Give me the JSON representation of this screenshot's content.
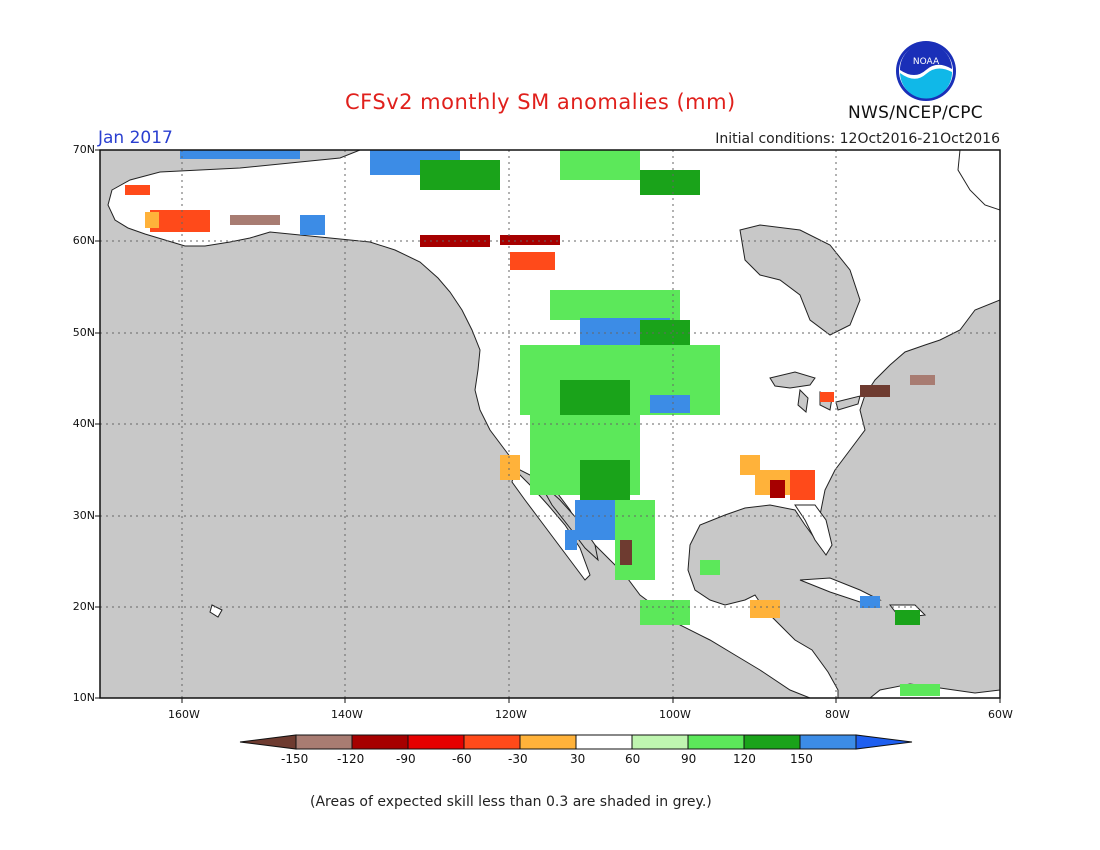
{
  "header": {
    "title": "CFSv2 monthly SM anomalies (mm)",
    "month": "Jan 2017",
    "initial_conditions": "Initial conditions: 12Oct2016-21Oct2016",
    "agency": "NWS/NCEP/CPC",
    "logo_text": "NOAA"
  },
  "axes": {
    "lat_labels": [
      "70N",
      "60N",
      "50N",
      "40N",
      "30N",
      "20N",
      "10N"
    ],
    "lon_labels": [
      "160W",
      "140W",
      "120W",
      "100W",
      "80W",
      "60W"
    ]
  },
  "colorbar": {
    "labels": [
      "-150",
      "-120",
      "-90",
      "-60",
      "-30",
      "30",
      "60",
      "90",
      "120",
      "150"
    ],
    "colors": [
      "#6e3b30",
      "#a87c72",
      "#a60000",
      "#e60000",
      "#ff4a1a",
      "#ffb23a",
      "#ffffff",
      "#bff5b0",
      "#5ce85a",
      "#1aa31a",
      "#3c8ce6",
      "#1e5ff0"
    ]
  },
  "legend_colors": {
    "land_grey": "#c8c8c8",
    "ocean": "#ffffff"
  },
  "footnote": "(Areas of expected skill less than 0.3 are shaded in grey.)"
}
